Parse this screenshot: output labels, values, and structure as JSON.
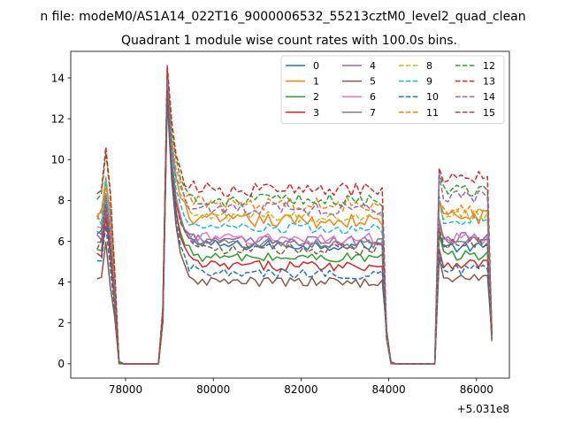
{
  "figure": {
    "suptitle": "n file: modeM0/AS1A14_022T16_9000006532_55213cztM0_level2_quad_clean",
    "x_offset_label": "+5.031e8"
  },
  "chart_data": {
    "type": "line",
    "title": "Quadrant 1 module wise count rates with 100.0s bins.",
    "xlabel": "",
    "ylabel": "",
    "x_offset": 503100000,
    "xlim": [
      76750,
      86750
    ],
    "ylim": [
      -0.7,
      15.3
    ],
    "x_ticks": [
      78000,
      80000,
      82000,
      84000,
      86000
    ],
    "x_tick_labels": [
      "78000",
      "80000",
      "82000",
      "84000",
      "86000"
    ],
    "y_ticks": [
      0,
      2,
      4,
      6,
      8,
      10,
      12,
      14
    ],
    "y_tick_labels": [
      "0",
      "2",
      "4",
      "6",
      "8",
      "10",
      "12",
      "14"
    ],
    "grid": false,
    "legend": {
      "placement": "upper right",
      "columns": 4
    },
    "peak_x": 78950,
    "segments": [
      {
        "name": "seg1",
        "x_start": 77350,
        "x_end": 77650
      },
      {
        "name": "gap1",
        "x_start": 77950,
        "x_end": 78750
      },
      {
        "name": "seg2",
        "x_start": 79050,
        "x_end": 83850
      },
      {
        "name": "gap2",
        "x_start": 84150,
        "x_end": 85050
      },
      {
        "name": "seg3",
        "x_start": 85150,
        "x_end": 86250
      }
    ],
    "series": [
      {
        "name": "0",
        "color": "#1f77b4",
        "dash": false,
        "start_level": 6.3,
        "peak": 13.9,
        "plateau": 5.8,
        "seg3_level": 5.7,
        "noise": 0.25
      },
      {
        "name": "1",
        "color": "#ff7f0e",
        "dash": false,
        "start_level": 7.2,
        "peak": 14.2,
        "plateau": 7.0,
        "seg3_level": 7.2,
        "noise": 0.35
      },
      {
        "name": "2",
        "color": "#2ca02c",
        "dash": false,
        "start_level": 5.5,
        "peak": 13.2,
        "plateau": 5.2,
        "seg3_level": 5.3,
        "noise": 0.25
      },
      {
        "name": "3",
        "color": "#d62728",
        "dash": false,
        "start_level": 5.3,
        "peak": 13.8,
        "plateau": 4.8,
        "seg3_level": 4.9,
        "noise": 0.25
      },
      {
        "name": "4",
        "color": "#9467bd",
        "dash": false,
        "start_level": 6.2,
        "peak": 13.6,
        "plateau": 6.0,
        "seg3_level": 6.2,
        "noise": 0.25
      },
      {
        "name": "5",
        "color": "#8c564b",
        "dash": false,
        "start_level": 4.0,
        "peak": 13.0,
        "plateau": 4.0,
        "seg3_level": 4.2,
        "noise": 0.25
      },
      {
        "name": "6",
        "color": "#e377c2",
        "dash": false,
        "start_level": 6.5,
        "peak": 13.5,
        "plateau": 6.1,
        "seg3_level": 6.1,
        "noise": 0.3
      },
      {
        "name": "7",
        "color": "#7f7f7f",
        "dash": false,
        "start_level": 6.3,
        "peak": 13.7,
        "plateau": 5.9,
        "seg3_level": 6.0,
        "noise": 0.25
      },
      {
        "name": "8",
        "color": "#bcbd22",
        "dash": true,
        "start_level": 7.0,
        "peak": 14.0,
        "plateau": 7.2,
        "seg3_level": 7.3,
        "noise": 0.3
      },
      {
        "name": "9",
        "color": "#17becf",
        "dash": true,
        "start_level": 7.0,
        "peak": 14.1,
        "plateau": 6.6,
        "seg3_level": 7.0,
        "noise": 0.3
      },
      {
        "name": "10",
        "color": "#1f77b4",
        "dash": true,
        "start_level": 4.8,
        "peak": 13.1,
        "plateau": 4.4,
        "seg3_level": 4.6,
        "noise": 0.25
      },
      {
        "name": "11",
        "color": "#ff7f0e",
        "dash": true,
        "start_level": 7.4,
        "peak": 14.3,
        "plateau": 7.8,
        "seg3_level": 7.5,
        "noise": 0.35
      },
      {
        "name": "12",
        "color": "#2ca02c",
        "dash": true,
        "start_level": 8.3,
        "peak": 14.4,
        "plateau": 8.0,
        "seg3_level": 8.5,
        "noise": 0.3
      },
      {
        "name": "13",
        "color": "#d62728",
        "dash": true,
        "start_level": 8.6,
        "peak": 14.6,
        "plateau": 8.5,
        "seg3_level": 9.2,
        "noise": 0.35
      },
      {
        "name": "14",
        "color": "#9467bd",
        "dash": true,
        "start_level": 6.2,
        "peak": 13.9,
        "plateau": 7.6,
        "seg3_level": 8.2,
        "noise": 0.35
      },
      {
        "name": "15",
        "color": "#8c564b",
        "dash": true,
        "start_level": 5.8,
        "peak": 13.4,
        "plateau": 5.6,
        "seg3_level": 5.9,
        "noise": 0.3
      }
    ]
  }
}
